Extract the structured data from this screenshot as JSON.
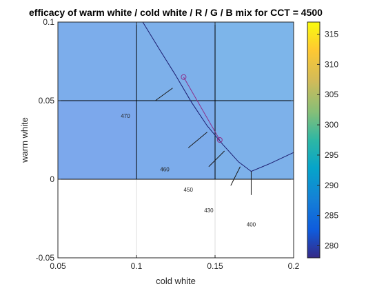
{
  "chart_data": {
    "type": "heatmap",
    "title": "efficacy of warm white / cold white / R / G / B mix for CCT = 4500",
    "xlabel": "cold white",
    "ylabel": "warm white",
    "xlim": [
      0.05,
      0.2
    ],
    "ylim": [
      -0.05,
      0.1
    ],
    "x_ticks": [
      "0.05",
      "0.1",
      "0.15",
      "0.2"
    ],
    "y_ticks": [
      "-0.05",
      "0",
      "0.05",
      "0.1"
    ],
    "grid": true,
    "heatmap_cells": [
      {
        "x0": 0.05,
        "x1": 0.1,
        "y0": 0.05,
        "y1": 0.1,
        "value": 284.6
      },
      {
        "x0": 0.1,
        "x1": 0.15,
        "y0": 0.05,
        "y1": 0.1,
        "value": 285.4
      },
      {
        "x0": 0.15,
        "x1": 0.2,
        "y0": 0.05,
        "y1": 0.1,
        "value": 286.5
      },
      {
        "x0": 0.05,
        "x1": 0.1,
        "y0": 0.0,
        "y1": 0.05,
        "value": 283.3
      },
      {
        "x0": 0.1,
        "x1": 0.15,
        "y0": 0.0,
        "y1": 0.05,
        "value": 284.3
      },
      {
        "x0": 0.15,
        "x1": 0.2,
        "y0": 0.0,
        "y1": 0.05,
        "value": 285.5
      }
    ],
    "curve": {
      "points": [
        [
          0.104,
          0.1
        ],
        [
          0.115,
          0.082
        ],
        [
          0.125,
          0.066
        ],
        [
          0.135,
          0.049
        ],
        [
          0.145,
          0.034
        ],
        [
          0.155,
          0.022
        ],
        [
          0.165,
          0.011
        ],
        [
          0.173,
          0.005
        ],
        [
          0.185,
          0.01
        ],
        [
          0.2,
          0.017
        ]
      ]
    },
    "tick_segments": [
      [
        [
          0.112,
          0.05
        ],
        [
          0.123,
          0.058
        ]
      ],
      [
        [
          0.133,
          0.02
        ],
        [
          0.145,
          0.03
        ]
      ],
      [
        [
          0.146,
          0.008
        ],
        [
          0.156,
          0.018
        ]
      ],
      [
        [
          0.166,
          0.008
        ],
        [
          0.16,
          -0.004
        ]
      ],
      [
        [
          0.173,
          0.005
        ],
        [
          0.173,
          -0.01
        ]
      ]
    ],
    "contour_labels": [
      {
        "text": "470",
        "x": 0.093,
        "y": 0.039
      },
      {
        "text": "460",
        "x": 0.118,
        "y": 0.005
      },
      {
        "text": "450",
        "x": 0.133,
        "y": -0.008
      },
      {
        "text": "430",
        "x": 0.146,
        "y": -0.021
      },
      {
        "text": "400",
        "x": 0.173,
        "y": -0.03
      }
    ],
    "segment": {
      "points": [
        [
          0.13,
          0.065
        ],
        [
          0.153,
          0.025
        ]
      ],
      "color": "#8b2f8b"
    },
    "colorbar": {
      "min": 278,
      "max": 317,
      "ticks": [
        "280",
        "285",
        "290",
        "295",
        "300",
        "305",
        "310",
        "315"
      ],
      "colormap": "parula"
    }
  }
}
